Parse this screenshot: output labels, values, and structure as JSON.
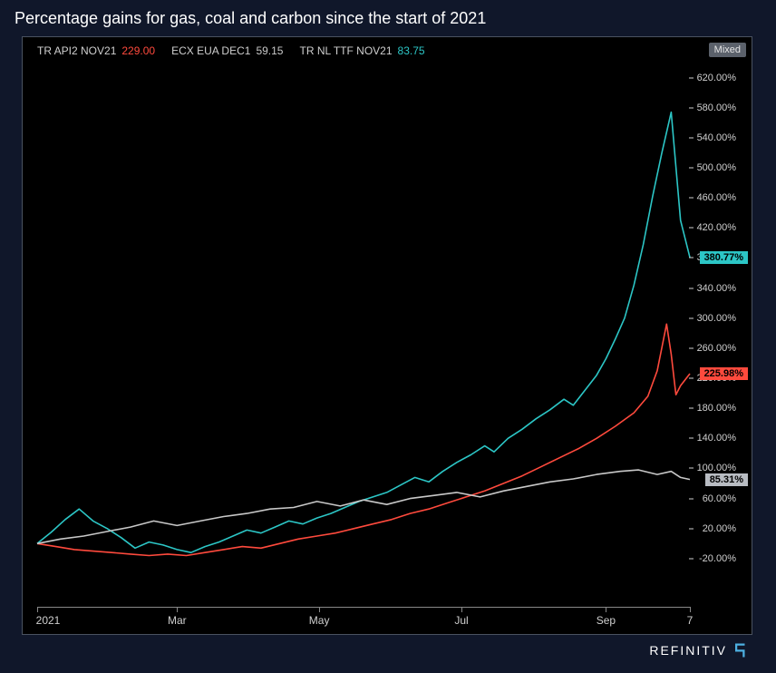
{
  "title": "Percentage gains for gas, coal and carbon since the start of 2021",
  "attribution": "REFINITIV",
  "chart": {
    "type": "line",
    "background_color": "#000000",
    "frame_border_color": "#4a5260",
    "text_color": "#cfcfcf",
    "line_width": 1.6,
    "mixed_label": "Mixed",
    "y": {
      "min": -60,
      "max": 640,
      "tick_step": 40,
      "tick_suffix": "%",
      "tick_format_decimals": 2
    },
    "x": {
      "domain_min": 0,
      "domain_max": 280,
      "ticks": [
        {
          "pos": 0,
          "label": "2021"
        },
        {
          "pos": 60,
          "label": "Mar"
        },
        {
          "pos": 121,
          "label": "May"
        },
        {
          "pos": 182,
          "label": "Jul"
        },
        {
          "pos": 244,
          "label": "Sep"
        },
        {
          "pos": 280,
          "label": "7"
        }
      ]
    },
    "legend": [
      {
        "name": "TR API2 NOV21",
        "value": "229.00",
        "value_color": "#ff4a3d"
      },
      {
        "name": "ECX EUA DEC1",
        "value": "59.15",
        "value_color": "#c8c8c8"
      },
      {
        "name": "TR NL TTF NOV21",
        "value": "83.75",
        "value_color": "#2cc6c6"
      }
    ],
    "series": [
      {
        "id": "ttf",
        "color": "#2cc6c6",
        "final_badge": "380.77%",
        "final_badge_bg": "#2cc6c6",
        "final_value": 380.77,
        "data": [
          [
            0,
            0
          ],
          [
            6,
            15
          ],
          [
            12,
            32
          ],
          [
            18,
            46
          ],
          [
            24,
            30
          ],
          [
            30,
            20
          ],
          [
            36,
            8
          ],
          [
            42,
            -6
          ],
          [
            48,
            2
          ],
          [
            54,
            -2
          ],
          [
            60,
            -8
          ],
          [
            66,
            -12
          ],
          [
            72,
            -4
          ],
          [
            78,
            2
          ],
          [
            84,
            10
          ],
          [
            90,
            18
          ],
          [
            96,
            14
          ],
          [
            102,
            22
          ],
          [
            108,
            30
          ],
          [
            114,
            26
          ],
          [
            120,
            34
          ],
          [
            126,
            40
          ],
          [
            132,
            48
          ],
          [
            138,
            56
          ],
          [
            144,
            62
          ],
          [
            150,
            68
          ],
          [
            156,
            78
          ],
          [
            162,
            88
          ],
          [
            168,
            82
          ],
          [
            174,
            96
          ],
          [
            180,
            108
          ],
          [
            186,
            118
          ],
          [
            192,
            130
          ],
          [
            196,
            122
          ],
          [
            202,
            140
          ],
          [
            208,
            152
          ],
          [
            214,
            166
          ],
          [
            220,
            178
          ],
          [
            226,
            192
          ],
          [
            230,
            184
          ],
          [
            236,
            208
          ],
          [
            240,
            224
          ],
          [
            244,
            246
          ],
          [
            248,
            272
          ],
          [
            252,
            300
          ],
          [
            256,
            344
          ],
          [
            260,
            398
          ],
          [
            264,
            462
          ],
          [
            268,
            520
          ],
          [
            272,
            574
          ],
          [
            276,
            430
          ],
          [
            280,
            380.77
          ]
        ]
      },
      {
        "id": "api2",
        "color": "#ff4a3d",
        "final_badge": "225.98%",
        "final_badge_bg": "#ff4a3d",
        "final_value": 225.98,
        "data": [
          [
            0,
            0
          ],
          [
            8,
            -4
          ],
          [
            16,
            -8
          ],
          [
            24,
            -10
          ],
          [
            32,
            -12
          ],
          [
            40,
            -14
          ],
          [
            48,
            -16
          ],
          [
            56,
            -14
          ],
          [
            64,
            -16
          ],
          [
            72,
            -12
          ],
          [
            80,
            -8
          ],
          [
            88,
            -4
          ],
          [
            96,
            -6
          ],
          [
            104,
            0
          ],
          [
            112,
            6
          ],
          [
            120,
            10
          ],
          [
            128,
            14
          ],
          [
            136,
            20
          ],
          [
            144,
            26
          ],
          [
            152,
            32
          ],
          [
            160,
            40
          ],
          [
            168,
            46
          ],
          [
            176,
            54
          ],
          [
            184,
            62
          ],
          [
            192,
            70
          ],
          [
            200,
            80
          ],
          [
            208,
            90
          ],
          [
            216,
            102
          ],
          [
            224,
            114
          ],
          [
            232,
            126
          ],
          [
            240,
            140
          ],
          [
            248,
            156
          ],
          [
            256,
            174
          ],
          [
            262,
            196
          ],
          [
            266,
            230
          ],
          [
            270,
            292
          ],
          [
            272,
            252
          ],
          [
            274,
            198
          ],
          [
            276,
            210
          ],
          [
            280,
            225.98
          ]
        ]
      },
      {
        "id": "eua",
        "color": "#c8c8c8",
        "final_badge": "85.31%",
        "final_badge_bg": "#b8bcc2",
        "final_value": 85.31,
        "data": [
          [
            0,
            0
          ],
          [
            10,
            6
          ],
          [
            20,
            10
          ],
          [
            30,
            16
          ],
          [
            40,
            22
          ],
          [
            50,
            30
          ],
          [
            60,
            24
          ],
          [
            70,
            30
          ],
          [
            80,
            36
          ],
          [
            90,
            40
          ],
          [
            100,
            46
          ],
          [
            110,
            48
          ],
          [
            120,
            56
          ],
          [
            130,
            50
          ],
          [
            140,
            58
          ],
          [
            150,
            52
          ],
          [
            160,
            60
          ],
          [
            170,
            64
          ],
          [
            180,
            68
          ],
          [
            190,
            62
          ],
          [
            200,
            70
          ],
          [
            210,
            76
          ],
          [
            220,
            82
          ],
          [
            230,
            86
          ],
          [
            240,
            92
          ],
          [
            250,
            96
          ],
          [
            258,
            98
          ],
          [
            266,
            92
          ],
          [
            272,
            96
          ],
          [
            276,
            88
          ],
          [
            280,
            85.31
          ]
        ]
      }
    ]
  }
}
